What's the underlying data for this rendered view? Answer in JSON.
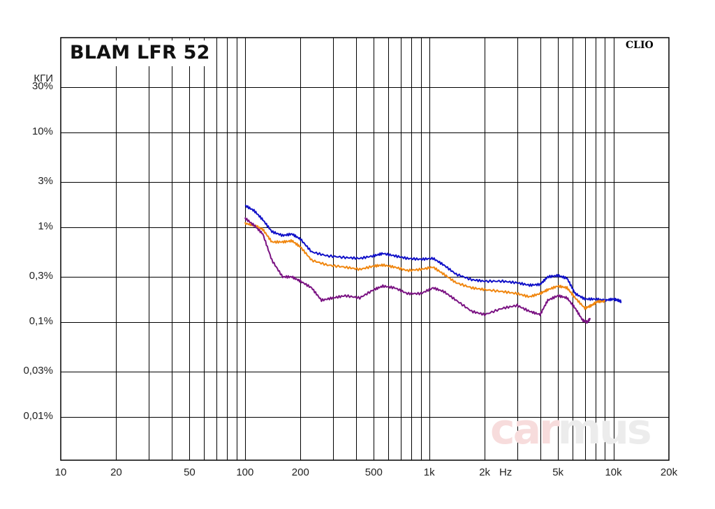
{
  "title": "BLAM LFR 52",
  "brand": "CLIO",
  "watermark": {
    "part1": "car",
    "part2": "mus"
  },
  "chart_data": {
    "type": "line",
    "xscale": "log",
    "yscale": "log",
    "xlim": [
      10,
      20000
    ],
    "ylim_percent": [
      0.0035,
      100
    ],
    "ylabel": "КГИ",
    "xunit": "Hz",
    "grid": true,
    "y_ticks": [
      {
        "value": 30,
        "label": "30%"
      },
      {
        "value": 10,
        "label": "10%"
      },
      {
        "value": 3,
        "label": "3%"
      },
      {
        "value": 1,
        "label": "1%"
      },
      {
        "value": 0.3,
        "label": "0,3%"
      },
      {
        "value": 0.1,
        "label": "0,1%"
      },
      {
        "value": 0.03,
        "label": "0,03%"
      },
      {
        "value": 0.01,
        "label": "0,01%"
      }
    ],
    "x_ticks": [
      {
        "value": 10,
        "label": "10"
      },
      {
        "value": 20,
        "label": "20"
      },
      {
        "value": 50,
        "label": "50"
      },
      {
        "value": 100,
        "label": "100"
      },
      {
        "value": 200,
        "label": "200"
      },
      {
        "value": 500,
        "label": "500"
      },
      {
        "value": 1000,
        "label": "1k"
      },
      {
        "value": 2000,
        "label": "2k"
      },
      {
        "value": 5000,
        "label": "5k"
      },
      {
        "value": 10000,
        "label": "10k"
      },
      {
        "value": 20000,
        "label": "20k"
      }
    ],
    "series": [
      {
        "color": "#1010c8",
        "points": [
          [
            100,
            1.7
          ],
          [
            112,
            1.5
          ],
          [
            125,
            1.2
          ],
          [
            140,
            0.9
          ],
          [
            160,
            0.82
          ],
          [
            180,
            0.85
          ],
          [
            200,
            0.75
          ],
          [
            230,
            0.55
          ],
          [
            280,
            0.5
          ],
          [
            350,
            0.48
          ],
          [
            420,
            0.47
          ],
          [
            500,
            0.5
          ],
          [
            560,
            0.53
          ],
          [
            650,
            0.5
          ],
          [
            760,
            0.47
          ],
          [
            900,
            0.46
          ],
          [
            1050,
            0.47
          ],
          [
            1200,
            0.4
          ],
          [
            1400,
            0.32
          ],
          [
            1700,
            0.28
          ],
          [
            2000,
            0.27
          ],
          [
            2500,
            0.27
          ],
          [
            3000,
            0.26
          ],
          [
            3500,
            0.245
          ],
          [
            4000,
            0.25
          ],
          [
            4400,
            0.3
          ],
          [
            5000,
            0.31
          ],
          [
            5600,
            0.29
          ],
          [
            6200,
            0.2
          ],
          [
            7000,
            0.175
          ],
          [
            8000,
            0.175
          ],
          [
            9000,
            0.17
          ],
          [
            10000,
            0.175
          ],
          [
            10600,
            0.17
          ],
          [
            11000,
            0.165
          ]
        ]
      },
      {
        "color": "#f0860f",
        "points": [
          [
            100,
            1.1
          ],
          [
            112,
            1.05
          ],
          [
            125,
            0.95
          ],
          [
            140,
            0.7
          ],
          [
            160,
            0.7
          ],
          [
            180,
            0.72
          ],
          [
            200,
            0.62
          ],
          [
            230,
            0.45
          ],
          [
            280,
            0.4
          ],
          [
            350,
            0.38
          ],
          [
            420,
            0.36
          ],
          [
            500,
            0.39
          ],
          [
            560,
            0.4
          ],
          [
            650,
            0.38
          ],
          [
            760,
            0.35
          ],
          [
            900,
            0.36
          ],
          [
            1050,
            0.38
          ],
          [
            1200,
            0.32
          ],
          [
            1400,
            0.26
          ],
          [
            1700,
            0.23
          ],
          [
            2000,
            0.22
          ],
          [
            2500,
            0.21
          ],
          [
            3000,
            0.2
          ],
          [
            3500,
            0.185
          ],
          [
            4000,
            0.2
          ],
          [
            4400,
            0.22
          ],
          [
            5000,
            0.24
          ],
          [
            5600,
            0.23
          ],
          [
            6200,
            0.18
          ],
          [
            7000,
            0.14
          ],
          [
            7600,
            0.15
          ],
          [
            8200,
            0.165
          ],
          [
            9000,
            0.165
          ]
        ]
      },
      {
        "color": "#7a1282",
        "points": [
          [
            100,
            1.25
          ],
          [
            112,
            1.05
          ],
          [
            125,
            0.85
          ],
          [
            140,
            0.45
          ],
          [
            160,
            0.3
          ],
          [
            180,
            0.3
          ],
          [
            200,
            0.27
          ],
          [
            230,
            0.23
          ],
          [
            260,
            0.17
          ],
          [
            300,
            0.18
          ],
          [
            350,
            0.19
          ],
          [
            420,
            0.18
          ],
          [
            500,
            0.22
          ],
          [
            560,
            0.24
          ],
          [
            650,
            0.23
          ],
          [
            760,
            0.2
          ],
          [
            900,
            0.2
          ],
          [
            1050,
            0.23
          ],
          [
            1200,
            0.21
          ],
          [
            1400,
            0.17
          ],
          [
            1700,
            0.13
          ],
          [
            2000,
            0.12
          ],
          [
            2500,
            0.14
          ],
          [
            3000,
            0.15
          ],
          [
            3500,
            0.13
          ],
          [
            4000,
            0.12
          ],
          [
            4400,
            0.17
          ],
          [
            5000,
            0.19
          ],
          [
            5600,
            0.18
          ],
          [
            6200,
            0.14
          ],
          [
            6800,
            0.105
          ],
          [
            7200,
            0.1
          ],
          [
            7500,
            0.11
          ]
        ]
      }
    ]
  }
}
